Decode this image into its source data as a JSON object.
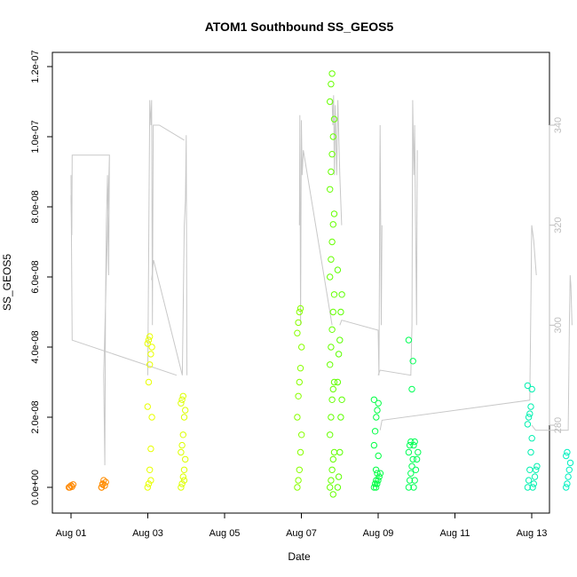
{
  "chart_data": {
    "type": "scatter",
    "title": "ATOM1 Southbound SS_GEOS5",
    "xlabel": "Date",
    "ylabel": "SS_GEOS5",
    "xlim": [
      0,
      12.6
    ],
    "x_tick_labels": [
      "Aug 01",
      "Aug 03",
      "Aug 05",
      "Aug 07",
      "Aug 09",
      "Aug 11",
      "Aug 13"
    ],
    "x_tick_values": [
      0,
      2,
      4,
      6,
      8,
      10,
      12
    ],
    "ylim": [
      -6e-09,
      1.23e-07
    ],
    "y_tick_labels": [
      "0.0e+00",
      "2.0e-08",
      "4.0e-08",
      "6.0e-08",
      "8.0e-08",
      "1.0e-07",
      "1.2e-07"
    ],
    "y_tick_values": [
      0,
      2e-08,
      4e-08,
      6e-08,
      8e-08,
      1e-07,
      1.2e-07
    ],
    "y2lim": [
      262,
      354
    ],
    "y2_tick_labels": [
      "280",
      "300",
      "320",
      "340"
    ],
    "y2_tick_values": [
      280,
      300,
      320,
      340
    ],
    "grid": false,
    "point_clusters": [
      {
        "x": 0.0,
        "values": [
          0,
          0,
          5e-10,
          2e-10,
          8e-10
        ],
        "color": "#ff8800"
      },
      {
        "x": 0.85,
        "values": [
          0,
          1e-09,
          2e-09,
          5e-10,
          1.5e-09,
          0,
          8e-10
        ],
        "color": "#ff8c00"
      },
      {
        "x": 2.05,
        "values": [
          0,
          1e-09,
          5e-09,
          1.1e-08,
          2e-08,
          2.3e-08,
          3e-08,
          3.5e-08,
          3.8e-08,
          4e-08,
          4.1e-08,
          4.2e-08,
          4.3e-08,
          2e-09
        ],
        "color": "#e8ff00"
      },
      {
        "x": 2.92,
        "values": [
          0,
          1e-09,
          3e-09,
          5e-09,
          8e-09,
          1e-08,
          1.2e-08,
          1.5e-08,
          2e-08,
          2.2e-08,
          2.4e-08,
          2.5e-08,
          2.6e-08,
          2e-09
        ],
        "color": "#ddff00"
      },
      {
        "x": 5.95,
        "values": [
          0,
          2e-09,
          5e-09,
          1e-08,
          1.5e-08,
          2e-08,
          2.6e-08,
          3e-08,
          3.4e-08,
          4e-08,
          4.4e-08,
          4.7e-08,
          5e-08,
          5.1e-08
        ],
        "color": "#88ff00"
      },
      {
        "x": 6.8,
        "values": [
          0,
          2e-09,
          5e-09,
          8e-09,
          1e-08,
          1.5e-08,
          2e-08,
          2.5e-08,
          2.8e-08,
          3e-08,
          3.5e-08,
          4e-08,
          4.5e-08,
          5e-08,
          5.5e-08,
          6e-08,
          6.5e-08,
          7e-08,
          7.5e-08,
          7.8e-08,
          8.5e-08,
          9e-08,
          9.5e-08,
          1e-07,
          1.05e-07,
          1.1e-07,
          1.15e-07,
          1.18e-07,
          -2e-09
        ],
        "color": "#66ff00"
      },
      {
        "x": 7.0,
        "values": [
          0,
          3e-09,
          1e-08,
          2e-08,
          2.5e-08,
          3e-08,
          3.8e-08,
          4.2e-08,
          5e-08,
          5.5e-08,
          6.2e-08
        ],
        "color": "#5cff00"
      },
      {
        "x": 7.95,
        "values": [
          0,
          1e-09,
          2e-09,
          4e-09,
          9e-09,
          1.2e-08,
          1.6e-08,
          2e-08,
          2.2e-08,
          2.4e-08,
          2.5e-08
        ],
        "color": "#00ff44"
      },
      {
        "x": 8.0,
        "values": [
          0,
          1e-09,
          2e-09,
          3e-09,
          4e-09,
          5e-09
        ],
        "color": "#00ff44"
      },
      {
        "x": 8.85,
        "values": [
          0,
          2e-09,
          4e-09,
          6e-09,
          8e-09,
          1e-08,
          1.2e-08,
          1.3e-08,
          2.8e-08,
          3.6e-08,
          4.2e-08
        ],
        "color": "#00ff55"
      },
      {
        "x": 8.98,
        "values": [
          0,
          2e-09,
          5e-09,
          8e-09,
          1e-08,
          1.2e-08,
          1.3e-08
        ],
        "color": "#00ff55"
      },
      {
        "x": 11.95,
        "values": [
          0,
          2e-09,
          5e-09,
          1e-08,
          1.4e-08,
          1.8e-08,
          2e-08,
          2.1e-08,
          2.3e-08,
          2.8e-08,
          2.9e-08
        ],
        "color": "#00f0b0"
      },
      {
        "x": 12.08,
        "values": [
          0,
          1e-09,
          3e-09,
          5e-09,
          6e-09
        ],
        "color": "#00f0b0"
      },
      {
        "x": 12.95,
        "values": [
          0,
          1e-09,
          3e-09,
          5e-09,
          7e-09,
          9e-09,
          1e-08
        ],
        "color": "#00f0c0"
      }
    ],
    "secondary_line": {
      "color": "#c8c8c8",
      "segments": [
        {
          "x": [
            0.0,
            0.02,
            0.03,
            1.0,
            0.85,
            0.88,
            0.9,
            0.92,
            0.95,
            0.98,
            1.0
          ],
          "y": [
            326,
            318,
            334,
            334,
            290,
            272,
            305,
            320,
            330,
            310,
            334
          ]
        },
        {
          "x": [
            0.0,
            0.03,
            2.75
          ],
          "y": [
            330,
            297,
            290
          ]
        },
        {
          "x": [
            2.0,
            2.05,
            2.08,
            2.1,
            2.12,
            2.14,
            2.3,
            2.95
          ],
          "y": [
            290,
            345,
            340,
            345,
            300,
            340,
            340,
            337
          ]
        },
        {
          "x": [
            2.1,
            2.15,
            2.9,
            2.95,
            2.98,
            3.0,
            3.02
          ],
          "y": [
            309,
            313,
            290,
            320,
            325,
            338,
            290
          ]
        },
        {
          "x": [
            5.95,
            5.96,
            5.98,
            6.0,
            6.02,
            6.05,
            6.8
          ],
          "y": [
            320,
            342,
            300,
            341,
            330,
            335,
            300
          ]
        },
        {
          "x": [
            6.8,
            6.82,
            6.84,
            6.86,
            6.88,
            6.9,
            6.92,
            6.95,
            7.0,
            7.05
          ],
          "y": [
            345,
            340,
            346,
            330,
            344,
            338,
            330,
            345,
            330,
            320
          ]
        },
        {
          "x": [
            7.0,
            7.05,
            8.0,
            8.02,
            8.05,
            8.08,
            8.1
          ],
          "y": [
            300,
            301,
            299,
            290,
            340,
            300,
            320
          ]
        },
        {
          "x": [
            8.0,
            8.05,
            8.85,
            8.88,
            8.9,
            8.93,
            8.95,
            9.0,
            9.02
          ],
          "y": [
            290,
            291,
            290,
            300,
            345,
            330,
            340,
            300,
            335
          ]
        },
        {
          "x": [
            8.05,
            8.1,
            11.95,
            11.98,
            12.0,
            12.05,
            12.1,
            12.12
          ],
          "y": [
            279,
            281,
            285,
            305,
            320,
            317,
            312,
            310
          ]
        },
        {
          "x": [
            12.0,
            12.1,
            12.95,
            12.98,
            13.0,
            13.02,
            13.05
          ],
          "y": [
            280,
            279,
            279,
            300,
            310,
            308,
            300
          ]
        }
      ]
    }
  }
}
